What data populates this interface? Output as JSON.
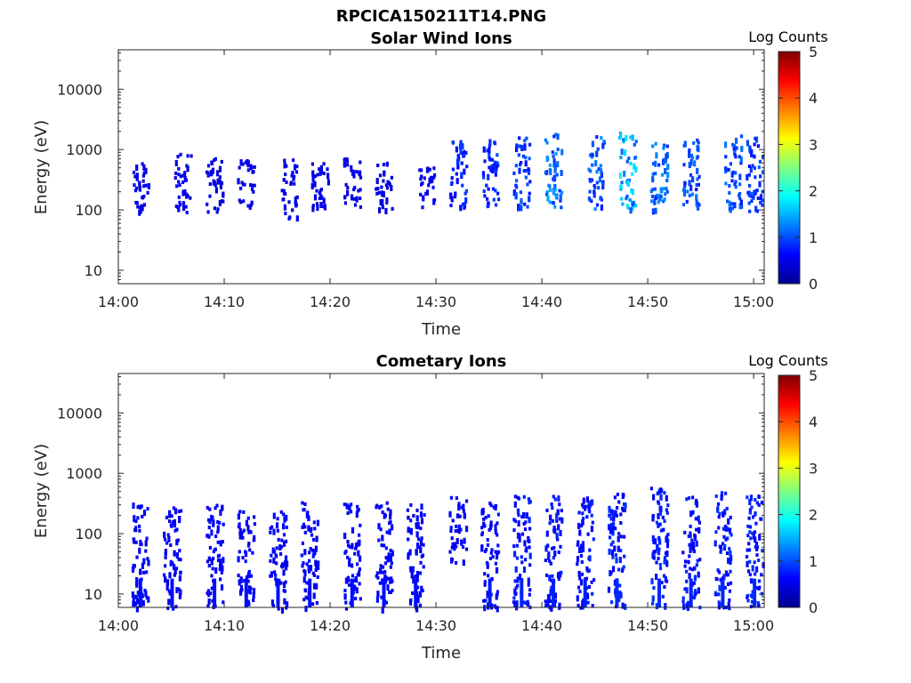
{
  "figure": {
    "title": "RPCICA150211T14.PNG"
  },
  "colorbar": {
    "label": "Log Counts",
    "ticks": [
      "0",
      "1",
      "2",
      "3",
      "4",
      "5"
    ],
    "range": [
      0,
      5
    ],
    "colormap": "jet"
  },
  "chart_data": [
    {
      "type": "heatmap",
      "title": "Solar Wind Ions",
      "xlabel": "Time",
      "ylabel": "Energy (eV)",
      "xlim": [
        "14:00",
        "15:01"
      ],
      "xticks": [
        "14:00",
        "14:10",
        "14:20",
        "14:30",
        "14:40",
        "14:50",
        "15:00"
      ],
      "yscale": "log",
      "ylim": [
        6,
        45000
      ],
      "yticks": [
        "10",
        "100",
        "1000",
        "10000"
      ],
      "colorbar_label": "Log Counts",
      "clim": [
        0,
        5
      ],
      "bursts": [
        {
          "t": "14:02",
          "e_lo": 90,
          "e_hi": 750,
          "level": 0.2
        },
        {
          "t": "14:06",
          "e_lo": 95,
          "e_hi": 900,
          "level": 0.25
        },
        {
          "t": "14:09",
          "e_lo": 95,
          "e_hi": 800,
          "level": 0.2
        },
        {
          "t": "14:12",
          "e_lo": 100,
          "e_hi": 700,
          "level": 0.2
        },
        {
          "t": "14:16",
          "e_lo": 75,
          "e_hi": 750,
          "level": 0.2
        },
        {
          "t": "14:19",
          "e_lo": 100,
          "e_hi": 700,
          "level": 0.2
        },
        {
          "t": "14:22",
          "e_lo": 110,
          "e_hi": 800,
          "level": 0.2
        },
        {
          "t": "14:25",
          "e_lo": 100,
          "e_hi": 700,
          "level": 0.2
        },
        {
          "t": "14:29",
          "e_lo": 110,
          "e_hi": 600,
          "level": 0.25
        },
        {
          "t": "14:32",
          "e_lo": 110,
          "e_hi": 1500,
          "level": 0.5
        },
        {
          "t": "14:35",
          "e_lo": 95,
          "e_hi": 1500,
          "level": 0.5
        },
        {
          "t": "14:38",
          "e_lo": 110,
          "e_hi": 1700,
          "level": 0.6
        },
        {
          "t": "14:41",
          "e_lo": 100,
          "e_hi": 2000,
          "level": 0.9
        },
        {
          "t": "14:45",
          "e_lo": 110,
          "e_hi": 1800,
          "level": 0.8
        },
        {
          "t": "14:48",
          "e_lo": 110,
          "e_hi": 2000,
          "level": 1.2
        },
        {
          "t": "14:51",
          "e_lo": 100,
          "e_hi": 1800,
          "level": 0.8
        },
        {
          "t": "14:54",
          "e_lo": 100,
          "e_hi": 1800,
          "level": 0.7
        },
        {
          "t": "14:58",
          "e_lo": 100,
          "e_hi": 1800,
          "level": 0.7
        },
        {
          "t": "15:00",
          "e_lo": 100,
          "e_hi": 1700,
          "level": 0.6
        }
      ]
    },
    {
      "type": "heatmap",
      "title": "Cometary Ions",
      "xlabel": "Time",
      "ylabel": "Energy (eV)",
      "xlim": [
        "14:00",
        "15:01"
      ],
      "xticks": [
        "14:00",
        "14:10",
        "14:20",
        "14:30",
        "14:40",
        "14:50",
        "15:00"
      ],
      "yscale": "log",
      "ylim": [
        6,
        45000
      ],
      "yticks": [
        "10",
        "100",
        "1000",
        "10000"
      ],
      "colorbar_label": "Log Counts",
      "clim": [
        0,
        5
      ],
      "bursts": [
        {
          "t": "14:02",
          "e_lo": 6,
          "e_hi": 350,
          "level": 0.3
        },
        {
          "t": "14:05",
          "e_lo": 6,
          "e_hi": 320,
          "level": 0.3
        },
        {
          "t": "14:09",
          "e_lo": 6,
          "e_hi": 350,
          "level": 0.3
        },
        {
          "t": "14:12",
          "e_lo": 6,
          "e_hi": 250,
          "level": 0.3
        },
        {
          "t": "14:15",
          "e_lo": 6,
          "e_hi": 250,
          "level": 0.3
        },
        {
          "t": "14:18",
          "e_lo": 6,
          "e_hi": 350,
          "level": 0.3
        },
        {
          "t": "14:22",
          "e_lo": 6,
          "e_hi": 330,
          "level": 0.3
        },
        {
          "t": "14:25",
          "e_lo": 6,
          "e_hi": 350,
          "level": 0.3
        },
        {
          "t": "14:28",
          "e_lo": 6,
          "e_hi": 350,
          "level": 0.3
        },
        {
          "t": "14:32",
          "e_lo": 35,
          "e_hi": 420,
          "level": 0.3
        },
        {
          "t": "14:35",
          "e_lo": 6,
          "e_hi": 400,
          "level": 0.35
        },
        {
          "t": "14:38",
          "e_lo": 6,
          "e_hi": 450,
          "level": 0.4
        },
        {
          "t": "14:41",
          "e_lo": 6,
          "e_hi": 480,
          "level": 0.4
        },
        {
          "t": "14:44",
          "e_lo": 6,
          "e_hi": 450,
          "level": 0.4
        },
        {
          "t": "14:47",
          "e_lo": 6,
          "e_hi": 500,
          "level": 0.45
        },
        {
          "t": "14:51",
          "e_lo": 6,
          "e_hi": 650,
          "level": 0.45
        },
        {
          "t": "14:54",
          "e_lo": 6,
          "e_hi": 450,
          "level": 0.4
        },
        {
          "t": "14:57",
          "e_lo": 6,
          "e_hi": 550,
          "level": 0.45
        },
        {
          "t": "15:00",
          "e_lo": 6,
          "e_hi": 450,
          "level": 0.45
        }
      ]
    }
  ]
}
